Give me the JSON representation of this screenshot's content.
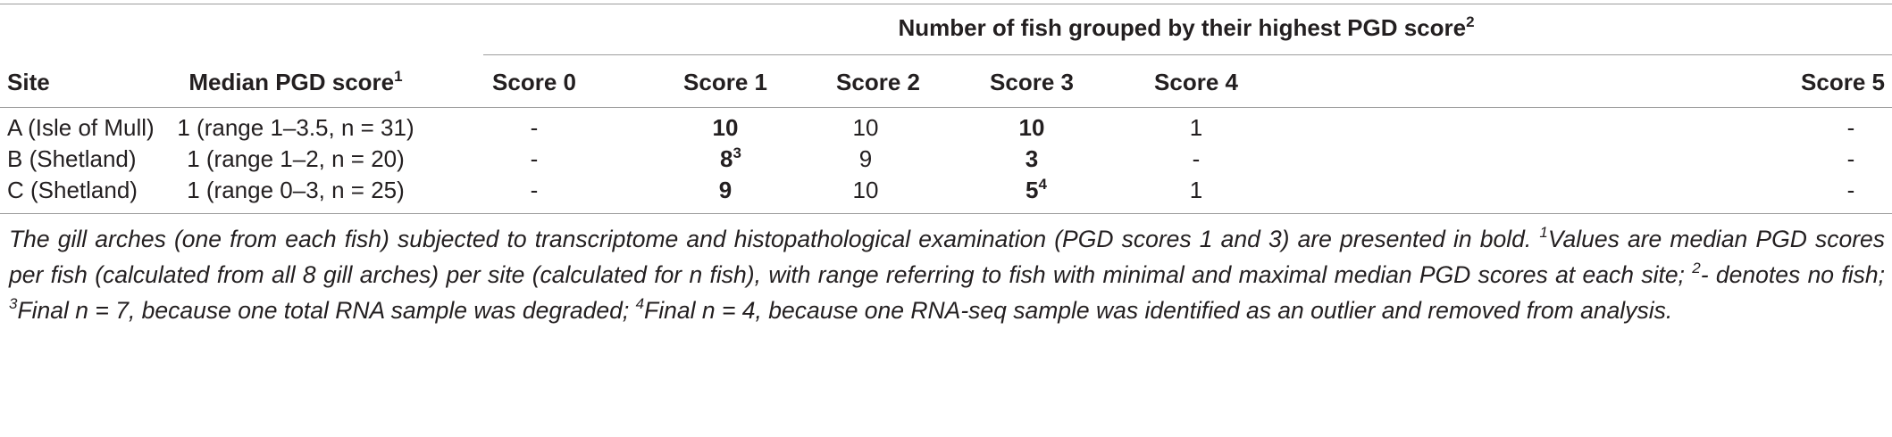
{
  "table": {
    "group_header": {
      "text": "Number of fish grouped by their highest PGD score",
      "sup": "2"
    },
    "col_site": "Site",
    "col_median": {
      "text": "Median PGD score",
      "sup": "1"
    },
    "score_cols": [
      "Score 0",
      "Score 1",
      "Score 2",
      "Score 3",
      "Score 4",
      "Score 5"
    ],
    "rows": [
      {
        "site": "A (Isle of Mull)",
        "median": "1 (range 1–3.5, n = 31)",
        "s0": "-",
        "s1": "10",
        "s1_sup": "",
        "s2": "10",
        "s3": "10",
        "s3_sup": "",
        "s4": "1",
        "s5": "-"
      },
      {
        "site": "B (Shetland)",
        "median": "1 (range 1–2, n = 20)",
        "s0": "-",
        "s1": "8",
        "s1_sup": "3",
        "s2": "9",
        "s3": "3",
        "s3_sup": "",
        "s4": "-",
        "s5": "-"
      },
      {
        "site": "C (Shetland)",
        "median": "1 (range 0–3, n = 25)",
        "s0": "-",
        "s1": "9",
        "s1_sup": "",
        "s2": "10",
        "s3": "5",
        "s3_sup": "4",
        "s4": "1",
        "s5": "-"
      }
    ]
  },
  "footnote": {
    "p1": "The gill arches (one from each fish) subjected to transcriptome and histopathological examination (PGD scores 1 and 3) are presented in bold. ",
    "sup1": "1",
    "p2": "Values are median PGD scores per fish (calculated from all 8 gill arches) per site (calculated for n fish), with range referring to fish with minimal and maximal median PGD scores at each site; ",
    "sup2": "2",
    "p3": "- denotes no fish; ",
    "sup3": "3",
    "p4": "Final n = 7, because one total RNA sample was degraded; ",
    "sup4": "4",
    "p5": "Final n = 4, because one RNA-seq sample was identified as an outlier and removed from analysis."
  }
}
